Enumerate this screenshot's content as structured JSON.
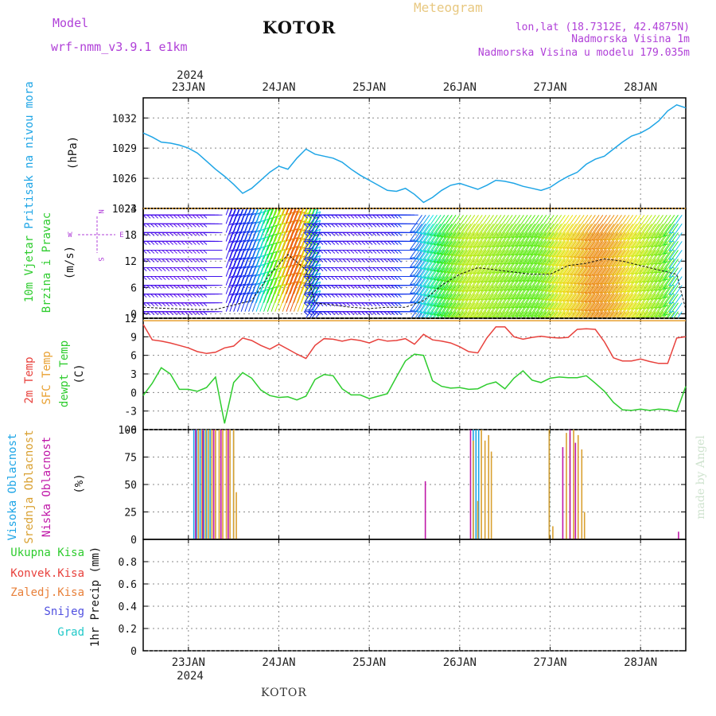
{
  "header": {
    "model_label": "Model",
    "model_name": "wrf-nmm_v3.9.1 e1km",
    "title": "KOTOR",
    "meteogram_label": "Meteogram",
    "lonlat": "lon,lat (18.7312E, 42.4875N)",
    "elevation": "Nadmorska Visina 1m",
    "model_elevation": "Nadmorska Visina u modelu 179.035m",
    "footer_title": "KOTOR",
    "credit": "made by Angel"
  },
  "colors": {
    "pressure": "#1ea5e6",
    "temp2m": "#e8413c",
    "sfc_temp": "#e8a030",
    "dewpoint": "#2ecc2e",
    "high_cloud": "#1ea5e6",
    "mid_cloud": "#d9a030",
    "low_cloud": "#c018a8",
    "purple_text": "#b040d8",
    "orange_text": "#e8c880"
  },
  "x_axis": {
    "top_year": "2024",
    "bottom_year": "2024",
    "day_labels": [
      "23JAN",
      "24JAN",
      "25JAN",
      "26JAN",
      "27JAN",
      "28JAN"
    ],
    "day_positions": [
      23,
      24,
      25,
      26,
      27,
      28
    ],
    "xlim": [
      22.5,
      28.5
    ]
  },
  "panel_labels": {
    "pressure": [
      "Pritisak na nivou mora"
    ],
    "pressure_unit": "(hPa)",
    "wind": [
      "10m Vjetar",
      "Brzina i Pravac"
    ],
    "wind_unit": "(m/s)",
    "wind_compass_n": "N",
    "wind_compass_w": "W",
    "wind_compass_e": "E",
    "wind_compass_s": "S",
    "temp_2m": "2m Temp",
    "temp_sfc": "SFC Temp",
    "temp_dew": "dewpt Temp",
    "temp_unit": "(C)",
    "cloud_high": "Visoka Oblacnost",
    "cloud_mid": "Srednja Oblacnost",
    "cloud_low": "Niska Oblacnost",
    "cloud_unit": "(%)",
    "precip_total": "Ukupna Kisa",
    "precip_conv": "Konvek.Kisa",
    "precip_frozen": "Zaledj.Kisa",
    "precip_snow": "Snijeg",
    "precip_grad": "Grad",
    "precip_unit": "1hr Precip (mm)"
  },
  "chart_data": [
    {
      "type": "line",
      "panel": "pressure",
      "ylabel": "Pritisak na nivou mora (hPa)",
      "ylim": [
        1023,
        1034
      ],
      "yticks": [
        1023,
        1026,
        1029,
        1032
      ],
      "grid": true,
      "series": [
        {
          "x": [
            22.5,
            22.6,
            22.7,
            22.8,
            22.9,
            23.0,
            23.1,
            23.2,
            23.3,
            23.4,
            23.5,
            23.6,
            23.7,
            23.8,
            23.9,
            24.0,
            24.1,
            24.2,
            24.3,
            24.4,
            24.5,
            24.6,
            24.7,
            24.8,
            24.9,
            25.0,
            25.1,
            25.2,
            25.3,
            25.4,
            25.5,
            25.6,
            25.7,
            25.8,
            25.9,
            26.0,
            26.1,
            26.2,
            26.3,
            26.4,
            26.5,
            26.6,
            26.7,
            26.8,
            26.9,
            27.0,
            27.1,
            27.2,
            27.3,
            27.4,
            27.5,
            27.6,
            27.7,
            27.8,
            27.9,
            28.0,
            28.1,
            28.2,
            28.3,
            28.4,
            28.5
          ],
          "values": [
            1030.5,
            1030.1,
            1029.6,
            1029.5,
            1029.3,
            1029.0,
            1028.5,
            1027.7,
            1026.9,
            1026.2,
            1025.4,
            1024.5,
            1025.0,
            1025.8,
            1026.6,
            1027.2,
            1026.9,
            1028.0,
            1028.9,
            1028.4,
            1028.2,
            1028.0,
            1027.6,
            1026.9,
            1026.3,
            1025.8,
            1025.3,
            1024.8,
            1024.7,
            1025.0,
            1024.4,
            1023.6,
            1024.1,
            1024.8,
            1025.3,
            1025.5,
            1025.2,
            1024.9,
            1025.3,
            1025.8,
            1025.7,
            1025.5,
            1025.2,
            1025.0,
            1024.8,
            1025.1,
            1025.7,
            1026.2,
            1026.6,
            1027.4,
            1027.9,
            1028.2,
            1028.9,
            1029.6,
            1030.2,
            1030.5,
            1031.0,
            1031.7,
            1032.7,
            1033.3,
            1033.0
          ]
        }
      ]
    },
    {
      "type": "line",
      "panel": "wind",
      "ylabel": "10m Vjetar Brzina i Pravac (m/s)",
      "ylim": [
        -1,
        24
      ],
      "yticks": [
        0,
        6,
        12,
        18,
        24
      ],
      "grid": true,
      "series": [
        {
          "x": [
            22.5,
            22.8,
            23.1,
            23.3,
            23.5,
            23.7,
            23.9,
            24.1,
            24.3,
            24.4,
            24.6,
            24.8,
            25.0,
            25.2,
            25.4,
            25.6,
            25.8,
            26.0,
            26.2,
            26.4,
            26.6,
            26.8,
            27.0,
            27.2,
            27.4,
            27.6,
            27.8,
            28.0,
            28.2,
            28.4,
            28.5
          ],
          "values": [
            1.5,
            1.2,
            1.0,
            1.0,
            2.0,
            3.0,
            9.0,
            13.5,
            10.0,
            2.5,
            2.0,
            1.5,
            1.2,
            1.5,
            1.5,
            3.0,
            6.5,
            9.0,
            10.5,
            10.0,
            9.5,
            9.0,
            9.0,
            11.0,
            11.5,
            12.5,
            12.0,
            11.0,
            10.0,
            9.0,
            1.0
          ]
        }
      ]
    },
    {
      "type": "line",
      "panel": "temperature",
      "ylabel": "(C)",
      "ylim": [
        -6,
        12
      ],
      "yticks": [
        -6,
        -3,
        0,
        3,
        6,
        9,
        12
      ],
      "grid": true,
      "series": [
        {
          "name": "2m Temp",
          "x": [
            22.5,
            22.6,
            22.7,
            22.8,
            22.9,
            23.0,
            23.1,
            23.2,
            23.3,
            23.4,
            23.5,
            23.6,
            23.7,
            23.8,
            23.9,
            24.0,
            24.1,
            24.2,
            24.3,
            24.4,
            24.5,
            24.6,
            24.7,
            24.8,
            24.9,
            25.0,
            25.1,
            25.2,
            25.3,
            25.4,
            25.5,
            25.6,
            25.7,
            25.8,
            25.9,
            26.0,
            26.1,
            26.2,
            26.3,
            26.4,
            26.5,
            26.6,
            26.7,
            26.8,
            26.9,
            27.0,
            27.1,
            27.2,
            27.3,
            27.4,
            27.5,
            27.6,
            27.7,
            27.8,
            27.9,
            28.0,
            28.1,
            28.2,
            28.3,
            28.4,
            28.5
          ],
          "values": [
            11.0,
            8.5,
            8.3,
            8.0,
            7.6,
            7.2,
            6.6,
            6.3,
            6.5,
            7.2,
            7.5,
            8.8,
            8.4,
            7.6,
            7.0,
            7.8,
            7.0,
            6.2,
            5.5,
            7.6,
            8.7,
            8.6,
            8.3,
            8.6,
            8.4,
            8.0,
            8.6,
            8.3,
            8.4,
            8.7,
            7.8,
            9.4,
            8.5,
            8.3,
            8.0,
            7.4,
            6.6,
            6.4,
            8.8,
            10.6,
            10.6,
            9.0,
            8.6,
            8.9,
            9.1,
            8.9,
            8.8,
            8.9,
            10.2,
            10.3,
            10.2,
            8.2,
            5.6,
            5.1,
            5.1,
            5.4,
            5.0,
            4.7,
            4.7,
            8.8,
            9.0
          ]
        },
        {
          "name": "SFC Temp",
          "x": [
            22.5,
            28.5
          ],
          "values": [
            11.6,
            11.6
          ]
        },
        {
          "name": "dewpt Temp",
          "x": [
            22.5,
            22.6,
            22.7,
            22.8,
            22.9,
            23.0,
            23.1,
            23.2,
            23.3,
            23.4,
            23.5,
            23.6,
            23.7,
            23.8,
            23.9,
            24.0,
            24.1,
            24.2,
            24.3,
            24.4,
            24.5,
            24.6,
            24.7,
            24.8,
            24.9,
            25.0,
            25.1,
            25.2,
            25.3,
            25.4,
            25.5,
            25.6,
            25.7,
            25.8,
            25.9,
            26.0,
            26.1,
            26.2,
            26.3,
            26.4,
            26.5,
            26.6,
            26.7,
            26.8,
            26.9,
            27.0,
            27.1,
            27.2,
            27.3,
            27.4,
            27.5,
            27.6,
            27.7,
            27.8,
            27.9,
            28.0,
            28.1,
            28.2,
            28.3,
            28.4,
            28.5
          ],
          "values": [
            -0.5,
            1.5,
            4.0,
            3.0,
            0.5,
            0.5,
            0.2,
            0.8,
            2.5,
            -5.0,
            1.6,
            3.2,
            2.3,
            0.4,
            -0.5,
            -0.8,
            -0.7,
            -1.2,
            -0.6,
            2.1,
            2.9,
            2.7,
            0.6,
            -0.4,
            -0.4,
            -1.0,
            -0.6,
            -0.2,
            2.5,
            5.1,
            6.2,
            6.0,
            1.9,
            1.0,
            0.7,
            0.8,
            0.5,
            0.6,
            1.3,
            1.7,
            0.6,
            2.3,
            3.5,
            2.0,
            1.6,
            2.3,
            2.5,
            2.4,
            2.4,
            2.7,
            1.5,
            0.2,
            -1.6,
            -2.8,
            -2.9,
            -2.7,
            -2.9,
            -2.7,
            -2.8,
            -3.1,
            1.0
          ]
        }
      ]
    },
    {
      "type": "bar",
      "panel": "cloud",
      "ylabel": "(%)",
      "ylim": [
        0,
        100
      ],
      "yticks": [
        0,
        25,
        50,
        75,
        100
      ],
      "grid": true,
      "series": [
        {
          "name": "Visoka Oblacnost",
          "x": [
            23.06,
            23.09,
            23.13,
            23.17,
            23.2,
            23.24,
            23.5,
            26.15,
            26.18,
            26.21,
            26.99
          ],
          "values": [
            100,
            100,
            100,
            100,
            100,
            100,
            100,
            100,
            100,
            100,
            100
          ]
        },
        {
          "name": "Srednja Oblacnost",
          "x": [
            23.11,
            23.15,
            23.19,
            23.22,
            23.26,
            23.3,
            23.34,
            23.38,
            23.42,
            23.46,
            23.5,
            23.53,
            26.15,
            26.2,
            26.24,
            26.28,
            26.32,
            26.35,
            26.99,
            27.03,
            27.18,
            27.22,
            27.26,
            27.31,
            27.35,
            27.38
          ],
          "values": [
            100,
            100,
            100,
            100,
            100,
            100,
            100,
            100,
            100,
            100,
            100,
            43,
            90,
            35,
            100,
            90,
            95,
            80,
            100,
            12,
            97,
            97,
            100,
            95,
            82,
            25
          ]
        },
        {
          "name": "Niska Oblacnost",
          "x": [
            23.08,
            23.16,
            23.28,
            23.36,
            23.44,
            25.62,
            26.12,
            27.14,
            27.22,
            27.28,
            28.42
          ],
          "values": [
            100,
            100,
            100,
            100,
            100,
            53,
            100,
            84,
            100,
            88,
            7
          ]
        }
      ]
    },
    {
      "type": "bar",
      "panel": "precip",
      "ylabel": "1hr Precip (mm)",
      "ylim": [
        0,
        1
      ],
      "yticks": [
        0,
        0.2,
        0.4,
        0.6,
        0.8
      ],
      "grid": true,
      "series": [
        {
          "name": "Ukupna Kisa",
          "x": [],
          "values": []
        },
        {
          "name": "Konvek.Kisa",
          "x": [],
          "values": []
        },
        {
          "name": "Zaledj.Kisa",
          "x": [],
          "values": []
        },
        {
          "name": "Snijeg",
          "x": [],
          "values": []
        },
        {
          "name": "Grad",
          "x": [],
          "values": []
        }
      ]
    }
  ]
}
